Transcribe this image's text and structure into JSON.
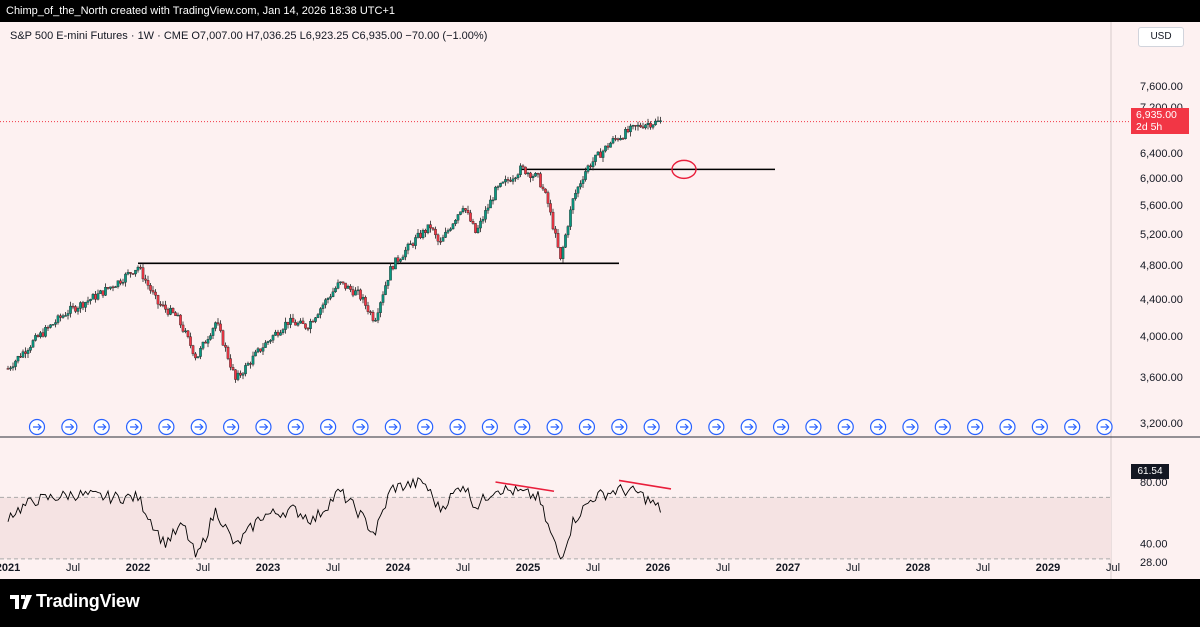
{
  "header": {
    "creator_text": "Chimp_of_the_North created with TradingView.com, Jan 14, 2026 18:38 UTC+1"
  },
  "legend": {
    "text": "S&P 500 E-mini Futures · 1W · CME  O7,007.00  H7,036.25  L6,923.25  C6,935.00  −70.00 (−1.00%)"
  },
  "price_scale": {
    "currency": "USD",
    "current_price": "6,935.00",
    "countdown": "2d 5h",
    "rsi_value": "61.54"
  },
  "footer": {
    "brand": "TradingView"
  },
  "colors": {
    "background": "#fdf1f1",
    "up": "#089981",
    "down": "#f23645",
    "annotation": "#e91e3b",
    "rsi_band": "#f5e3e3"
  },
  "chart_data": [
    {
      "type": "candlestick",
      "title": "S&P 500 E-mini Futures",
      "interval": "1W",
      "exchange": "CME",
      "x_ticks": [
        "2021",
        "Jul",
        "2022",
        "Jul",
        "2023",
        "Jul",
        "2024",
        "Jul",
        "2025",
        "Jul",
        "2026",
        "Jul",
        "2027",
        "Jul",
        "2028",
        "Jul",
        "2029",
        "Jul"
      ],
      "ylim": [
        3000,
        7900
      ],
      "y_ticks": [
        "7,600.00",
        "7,200.00",
        "6,400.00",
        "6,000.00",
        "5,600.00",
        "5,200.00",
        "4,800.00",
        "4,400.00",
        "4,000.00",
        "3,600.00",
        "3,200.00"
      ],
      "y_tick_values": [
        7600,
        7200,
        6400,
        6000,
        5600,
        5200,
        4800,
        4400,
        4000,
        3600,
        3200
      ],
      "price_path": [
        [
          2021.0,
          3680
        ],
        [
          2021.2,
          3950
        ],
        [
          2021.45,
          4250
        ],
        [
          2021.7,
          4450
        ],
        [
          2021.85,
          4600
        ],
        [
          2022.0,
          4780
        ],
        [
          2022.15,
          4350
        ],
        [
          2022.3,
          4200
        ],
        [
          2022.45,
          3780
        ],
        [
          2022.6,
          4150
        ],
        [
          2022.75,
          3570
        ],
        [
          2022.95,
          3880
        ],
        [
          2023.15,
          4150
        ],
        [
          2023.3,
          4100
        ],
        [
          2023.55,
          4580
        ],
        [
          2023.7,
          4450
        ],
        [
          2023.82,
          4170
        ],
        [
          2023.95,
          4780
        ],
        [
          2024.15,
          5150
        ],
        [
          2024.25,
          5300
        ],
        [
          2024.32,
          5050
        ],
        [
          2024.5,
          5600
        ],
        [
          2024.6,
          5200
        ],
        [
          2024.75,
          5800
        ],
        [
          2024.95,
          6150
        ],
        [
          2025.08,
          6000
        ],
        [
          2025.15,
          5650
        ],
        [
          2025.25,
          4850
        ],
        [
          2025.35,
          5700
        ],
        [
          2025.45,
          6150
        ],
        [
          2025.65,
          6600
        ],
        [
          2025.8,
          6800
        ],
        [
          2025.9,
          6900
        ],
        [
          2026.03,
          6935
        ]
      ],
      "horizontal_levels": [
        {
          "price": 4820,
          "from": 2022.0,
          "to": 2025.7
        },
        {
          "price": 6135,
          "from": 2024.95,
          "to": 2026.9
        }
      ],
      "current_price": 6935
    },
    {
      "type": "line",
      "title": "RSI",
      "ylim": [
        22,
        88
      ],
      "y_ticks": [
        "80.00",
        "40.00",
        "28.00"
      ],
      "y_tick_values": [
        80,
        40,
        28
      ],
      "band": [
        30,
        70
      ],
      "rsi_path": [
        [
          2021.0,
          58
        ],
        [
          2021.2,
          68
        ],
        [
          2021.5,
          72
        ],
        [
          2021.8,
          70
        ],
        [
          2022.0,
          70
        ],
        [
          2022.2,
          40
        ],
        [
          2022.35,
          52
        ],
        [
          2022.45,
          30
        ],
        [
          2022.6,
          62
        ],
        [
          2022.75,
          38
        ],
        [
          2022.95,
          58
        ],
        [
          2023.2,
          62
        ],
        [
          2023.35,
          55
        ],
        [
          2023.55,
          74
        ],
        [
          2023.7,
          60
        ],
        [
          2023.82,
          46
        ],
        [
          2023.95,
          76
        ],
        [
          2024.2,
          80
        ],
        [
          2024.32,
          62
        ],
        [
          2024.5,
          79
        ],
        [
          2024.6,
          64
        ],
        [
          2024.75,
          76
        ],
        [
          2024.95,
          73
        ],
        [
          2025.08,
          70
        ],
        [
          2025.15,
          52
        ],
        [
          2025.25,
          30
        ],
        [
          2025.35,
          55
        ],
        [
          2025.5,
          70
        ],
        [
          2025.7,
          75
        ],
        [
          2025.85,
          73
        ],
        [
          2026.03,
          61.5
        ]
      ],
      "current_value": 61.54
    }
  ]
}
